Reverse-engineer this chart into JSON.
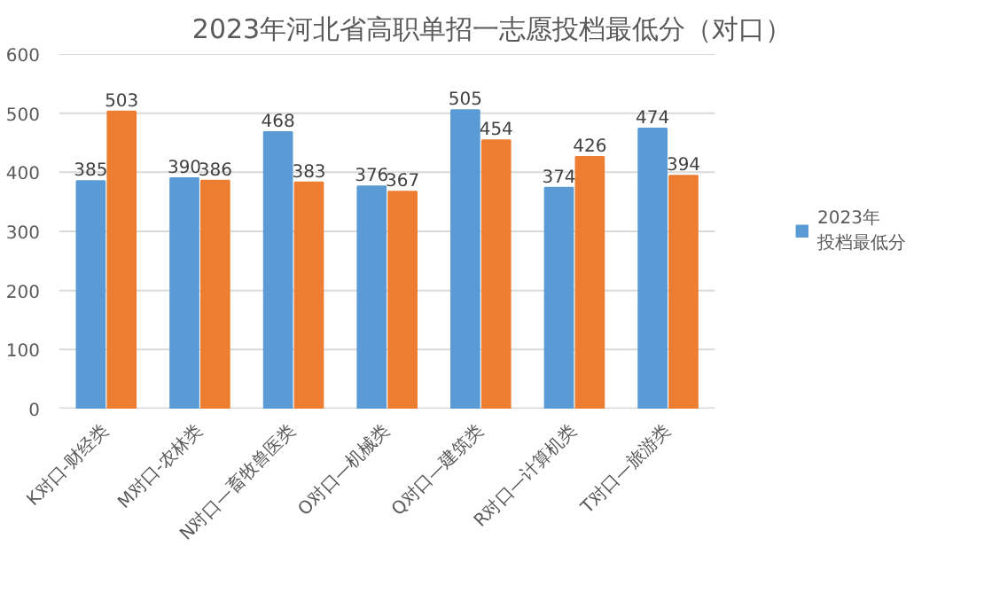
{
  "chart_data": {
    "type": "bar",
    "title": "2023年河北省高职单招一志愿投档最低分（对口）",
    "categories": [
      "K对口-财经类",
      "M对口-农林类",
      "N对口—畜牧兽医类",
      "O对口—机械类",
      "Q对口—建筑类",
      "R对口—计算机类",
      "T对口—旅游类"
    ],
    "series": [
      {
        "name": "2023年投档最低分",
        "color": "#5b9bd5",
        "values": [
          385,
          390,
          468,
          376,
          505,
          374,
          474
        ]
      },
      {
        "color": "#ed7d31",
        "values": [
          503,
          386,
          383,
          367,
          454,
          426,
          394
        ]
      }
    ],
    "ylim": [
      0,
      600
    ],
    "yticks": [
      0,
      100,
      200,
      300,
      400,
      500,
      600
    ],
    "grid": "y",
    "legend": "right",
    "data_labels": true
  }
}
